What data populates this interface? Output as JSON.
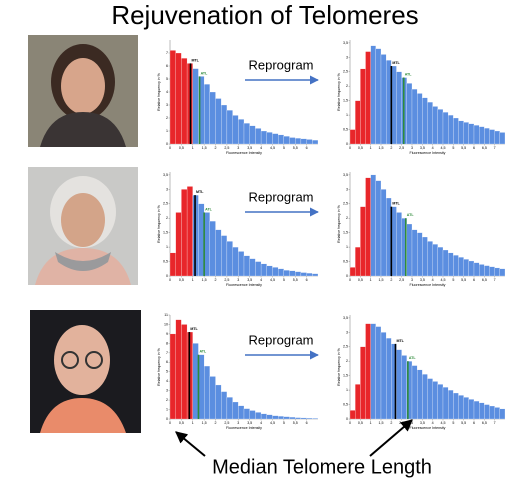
{
  "title": "Rejuvenation of Telomeres",
  "footer": "Median Telomere Length",
  "rows": [
    {
      "reprogram": "Reprogram",
      "before": {
        "type": "histogram",
        "y_label": "Relative frequency in %",
        "x_label": "Fluorescence Intensity",
        "xlim": [
          0,
          6.5
        ],
        "ylim": [
          0,
          8
        ],
        "xticks": [
          0,
          {
            "value": 0.5,
            "label": "0,5"
          },
          1,
          {
            "value": 1.5,
            "label": "1,5"
          },
          2,
          {
            "value": 2.5,
            "label": "2,5"
          },
          3,
          {
            "value": 3.5,
            "label": "3,5"
          },
          4,
          {
            "value": 4.5,
            "label": "4,5"
          },
          5,
          {
            "value": 5.5,
            "label": "5,5"
          },
          6
        ],
        "yticks": [
          0,
          1,
          2,
          3,
          4,
          5,
          6,
          7
        ],
        "series": [
          {
            "color": "#e8262a",
            "values": [
              7.2,
              7.0,
              6.6,
              6.2
            ]
          },
          {
            "color": "#5b8ee0",
            "values": [
              5.8,
              5.2,
              4.6,
              4.0,
              3.5,
              3.0,
              2.6,
              2.2,
              1.9,
              1.6,
              1.4,
              1.2,
              1.0,
              0.9,
              0.8,
              0.7,
              0.6,
              0.5,
              0.45,
              0.4,
              0.35,
              0.3
            ]
          }
        ],
        "markers": [
          {
            "label": "MTL",
            "x": 0.9,
            "color": "#000000"
          },
          {
            "label": "ATL",
            "x": 1.3,
            "color": "#2e8b3a"
          }
        ]
      },
      "after": {
        "type": "histogram",
        "y_label": "Relative frequency in %",
        "x_label": "Fluorescence Intensity",
        "xlim": [
          0,
          7.5
        ],
        "ylim": [
          0,
          3.6
        ],
        "xticks": [
          0,
          {
            "value": 0.5,
            "label": "0,5"
          },
          1,
          {
            "value": 1.5,
            "label": "1,5"
          },
          2,
          {
            "value": 2.5,
            "label": "2,5"
          },
          3,
          {
            "value": 3.5,
            "label": "3,5"
          },
          4,
          {
            "value": 4.5,
            "label": "4,5"
          },
          5,
          {
            "value": 5.5,
            "label": "5,5"
          },
          6,
          {
            "value": 6.5,
            "label": "6,5"
          },
          7
        ],
        "yticks": [
          0,
          {
            "value": 0.5,
            "label": "0,5"
          },
          1,
          {
            "value": 1.5,
            "label": "1,5"
          },
          2,
          {
            "value": 2.5,
            "label": "2,5"
          },
          3,
          {
            "value": 3.5,
            "label": "3,5"
          }
        ],
        "series": [
          {
            "color": "#e8262a",
            "values": [
              0.5,
              1.5,
              2.6,
              3.2
            ]
          },
          {
            "color": "#5b8ee0",
            "values": [
              3.4,
              3.3,
              3.1,
              2.9,
              2.7,
              2.5,
              2.3,
              2.1,
              1.9,
              1.75,
              1.6,
              1.45,
              1.3,
              1.2,
              1.1,
              1.0,
              0.9,
              0.8,
              0.75,
              0.7,
              0.65,
              0.6,
              0.55,
              0.5,
              0.45,
              0.4
            ]
          }
        ],
        "markers": [
          {
            "label": "MTL",
            "x": 2.0,
            "color": "#000000"
          },
          {
            "label": "ATL",
            "x": 2.6,
            "color": "#2e8b3a"
          }
        ]
      }
    },
    {
      "reprogram": "Reprogram",
      "before": {
        "type": "histogram",
        "y_label": "Relative frequency in %",
        "x_label": "Fluorescence Intensity",
        "xlim": [
          0,
          6.5
        ],
        "ylim": [
          0,
          3.6
        ],
        "xticks": [
          0,
          {
            "value": 0.5,
            "label": "0,5"
          },
          1,
          {
            "value": 1.5,
            "label": "1,5"
          },
          2,
          {
            "value": 2.5,
            "label": "2,5"
          },
          3,
          {
            "value": 3.5,
            "label": "3,5"
          },
          4,
          {
            "value": 4.5,
            "label": "4,5"
          },
          5,
          {
            "value": 5.5,
            "label": "5,5"
          },
          6
        ],
        "yticks": [
          0,
          {
            "value": 0.5,
            "label": "0,5"
          },
          1,
          {
            "value": 1.5,
            "label": "1,5"
          },
          2,
          {
            "value": 2.5,
            "label": "2,5"
          },
          3,
          {
            "value": 3.5,
            "label": "3,5"
          }
        ],
        "series": [
          {
            "color": "#e8262a",
            "values": [
              0.8,
              2.2,
              3.0,
              3.1
            ]
          },
          {
            "color": "#5b8ee0",
            "values": [
              2.8,
              2.5,
              2.2,
              1.9,
              1.6,
              1.4,
              1.2,
              1.0,
              0.85,
              0.7,
              0.6,
              0.5,
              0.42,
              0.35,
              0.3,
              0.25,
              0.2,
              0.18,
              0.15,
              0.12,
              0.1,
              0.08
            ]
          }
        ],
        "markers": [
          {
            "label": "MTL",
            "x": 1.1,
            "color": "#000000"
          },
          {
            "label": "ATL",
            "x": 1.5,
            "color": "#2e8b3a"
          }
        ]
      },
      "after": {
        "type": "histogram",
        "y_label": "Relative frequency in %",
        "x_label": "Fluorescence Intensity",
        "xlim": [
          0,
          7.5
        ],
        "ylim": [
          0,
          3.6
        ],
        "xticks": [
          0,
          {
            "value": 0.5,
            "label": "0,5"
          },
          1,
          {
            "value": 1.5,
            "label": "1,5"
          },
          2,
          {
            "value": 2.5,
            "label": "2,5"
          },
          3,
          {
            "value": 3.5,
            "label": "3,5"
          },
          4,
          {
            "value": 4.5,
            "label": "4,5"
          },
          5,
          {
            "value": 5.5,
            "label": "5,5"
          },
          6,
          {
            "value": 6.5,
            "label": "6,5"
          },
          7
        ],
        "yticks": [
          0,
          {
            "value": 0.5,
            "label": "0,5"
          },
          1,
          {
            "value": 1.5,
            "label": "1,5"
          },
          2,
          {
            "value": 2.5,
            "label": "2,5"
          },
          3,
          {
            "value": 3.5,
            "label": "3,5"
          }
        ],
        "series": [
          {
            "color": "#e8262a",
            "values": [
              0.3,
              1.0,
              2.4,
              3.4
            ]
          },
          {
            "color": "#5b8ee0",
            "values": [
              3.5,
              3.3,
              3.0,
              2.7,
              2.4,
              2.2,
              2.0,
              1.8,
              1.6,
              1.5,
              1.35,
              1.2,
              1.1,
              1.0,
              0.9,
              0.8,
              0.72,
              0.65,
              0.58,
              0.52,
              0.46,
              0.4,
              0.36,
              0.32,
              0.28,
              0.25
            ]
          }
        ],
        "markers": [
          {
            "label": "MTL",
            "x": 2.0,
            "color": "#000000"
          },
          {
            "label": "ATL",
            "x": 2.7,
            "color": "#2e8b3a"
          }
        ]
      }
    },
    {
      "reprogram": "Reprogram",
      "before": {
        "type": "histogram",
        "y_label": "Relative frequency in %",
        "x_label": "Fluorescence Intensity",
        "xlim": [
          0,
          6.5
        ],
        "ylim": [
          0,
          11
        ],
        "xticks": [
          0,
          {
            "value": 0.5,
            "label": "0,5"
          },
          1,
          {
            "value": 1.5,
            "label": "1,5"
          },
          2,
          {
            "value": 2.5,
            "label": "2,5"
          },
          3,
          {
            "value": 3.5,
            "label": "3,5"
          },
          4,
          {
            "value": 4.5,
            "label": "4,5"
          },
          5,
          {
            "value": 5.5,
            "label": "5,5"
          },
          6
        ],
        "yticks": [
          0,
          1,
          2,
          3,
          4,
          5,
          6,
          7,
          8,
          9,
          10,
          11
        ],
        "series": [
          {
            "color": "#e8262a",
            "values": [
              9,
              10.5,
              10,
              9.2
            ]
          },
          {
            "color": "#5b8ee0",
            "values": [
              8,
              6.8,
              5.6,
              4.5,
              3.6,
              2.9,
              2.3,
              1.8,
              1.4,
              1.1,
              0.9,
              0.7,
              0.55,
              0.45,
              0.35,
              0.3,
              0.25,
              0.2,
              0.15,
              0.12,
              0.1,
              0.08
            ]
          }
        ],
        "markers": [
          {
            "label": "MTL",
            "x": 0.85,
            "color": "#000000"
          },
          {
            "label": "ATL",
            "x": 1.25,
            "color": "#2e8b3a"
          }
        ]
      },
      "after": {
        "type": "histogram",
        "y_label": "Relative frequency in %",
        "x_label": "Fluorescence Intensity",
        "xlim": [
          0,
          7.5
        ],
        "ylim": [
          0,
          3.6
        ],
        "xticks": [
          0,
          {
            "value": 0.5,
            "label": "0,5"
          },
          1,
          {
            "value": 1.5,
            "label": "1,5"
          },
          2,
          {
            "value": 2.5,
            "label": "2,5"
          },
          3,
          {
            "value": 3.5,
            "label": "3,5"
          },
          4,
          {
            "value": 4.5,
            "label": "4,5"
          },
          5,
          {
            "value": 5.5,
            "label": "5,5"
          },
          6,
          {
            "value": 6.5,
            "label": "6,5"
          },
          7
        ],
        "yticks": [
          0,
          {
            "value": 0.5,
            "label": "0,5"
          },
          1,
          {
            "value": 1.5,
            "label": "1,5"
          },
          2,
          {
            "value": 2.5,
            "label": "2,5"
          },
          3,
          {
            "value": 3.5,
            "label": "3,5"
          }
        ],
        "series": [
          {
            "color": "#e8262a",
            "values": [
              0.3,
              1.2,
              2.5,
              3.3
            ]
          },
          {
            "color": "#5b8ee0",
            "values": [
              3.3,
              3.2,
              3.0,
              2.8,
              2.6,
              2.4,
              2.2,
              2.0,
              1.85,
              1.7,
              1.55,
              1.4,
              1.3,
              1.2,
              1.1,
              1.0,
              0.9,
              0.82,
              0.75,
              0.68,
              0.62,
              0.56,
              0.5,
              0.45,
              0.4,
              0.35
            ]
          }
        ],
        "markers": [
          {
            "label": "MTL",
            "x": 2.2,
            "color": "#000000"
          },
          {
            "label": "ATL",
            "x": 2.8,
            "color": "#2e8b3a"
          }
        ]
      }
    }
  ]
}
